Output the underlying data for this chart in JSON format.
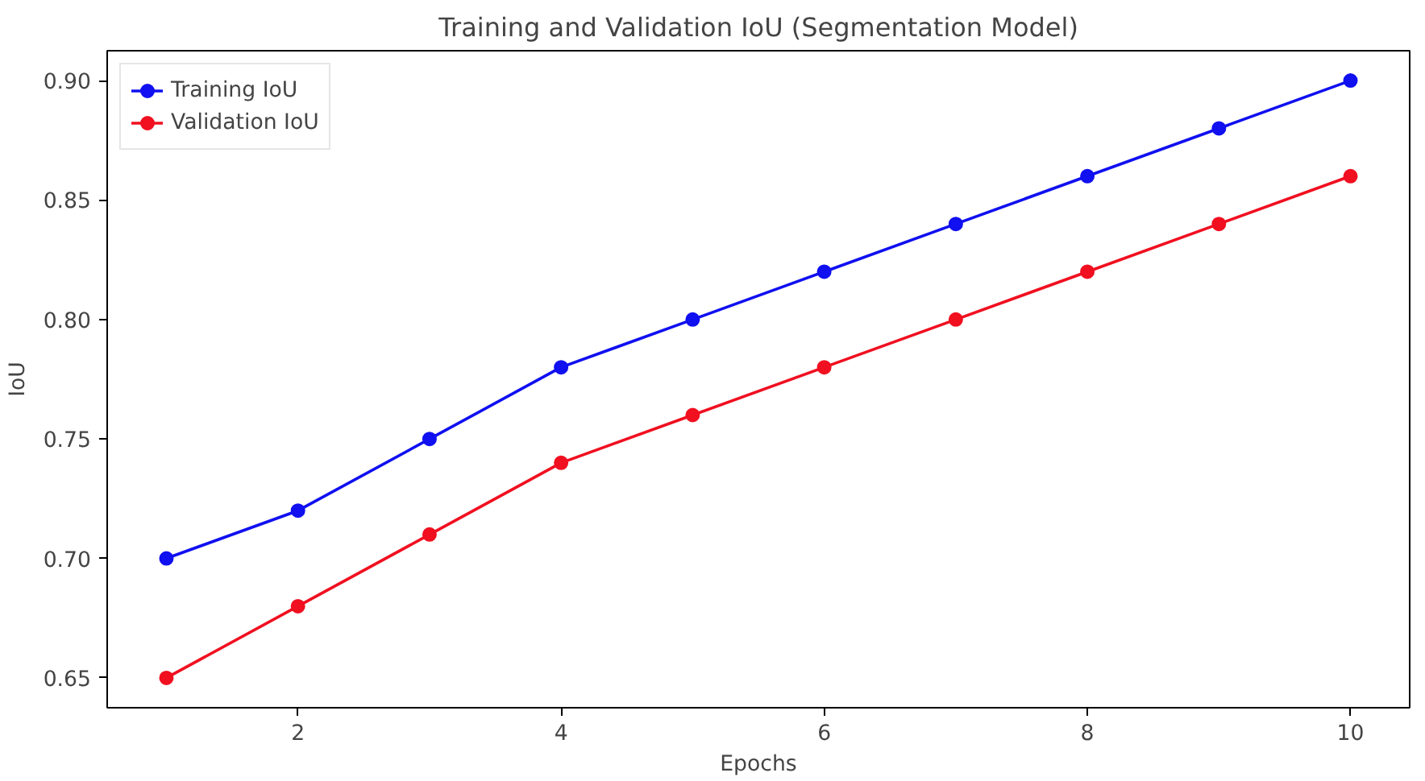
{
  "chart_data": {
    "type": "line",
    "title": "Training and Validation IoU (Segmentation Model)",
    "xlabel": "Epochs",
    "ylabel": "IoU",
    "x": [
      1,
      2,
      3,
      4,
      5,
      6,
      7,
      8,
      9,
      10
    ],
    "series": [
      {
        "name": "Training IoU",
        "color": "#1010f0",
        "values": [
          0.7,
          0.72,
          0.75,
          0.78,
          0.8,
          0.82,
          0.84,
          0.86,
          0.88,
          0.9
        ]
      },
      {
        "name": "Validation IoU",
        "color": "#f01020",
        "values": [
          0.65,
          0.68,
          0.71,
          0.74,
          0.76,
          0.78,
          0.8,
          0.82,
          0.84,
          0.86
        ]
      }
    ],
    "xlim": [
      0.55,
      10.45
    ],
    "ylim": [
      0.6375,
      0.9125
    ],
    "xticks": [
      2,
      4,
      6,
      8,
      10
    ],
    "yticks": [
      {
        "value": 0.65,
        "label": "0.65"
      },
      {
        "value": 0.7,
        "label": "0.70"
      },
      {
        "value": 0.75,
        "label": "0.75"
      },
      {
        "value": 0.8,
        "label": "0.80"
      },
      {
        "value": 0.85,
        "label": "0.85"
      },
      {
        "value": 0.9,
        "label": "0.90"
      }
    ],
    "grid": false,
    "legend": "top left",
    "marker": "circle",
    "line_style": "solid"
  }
}
